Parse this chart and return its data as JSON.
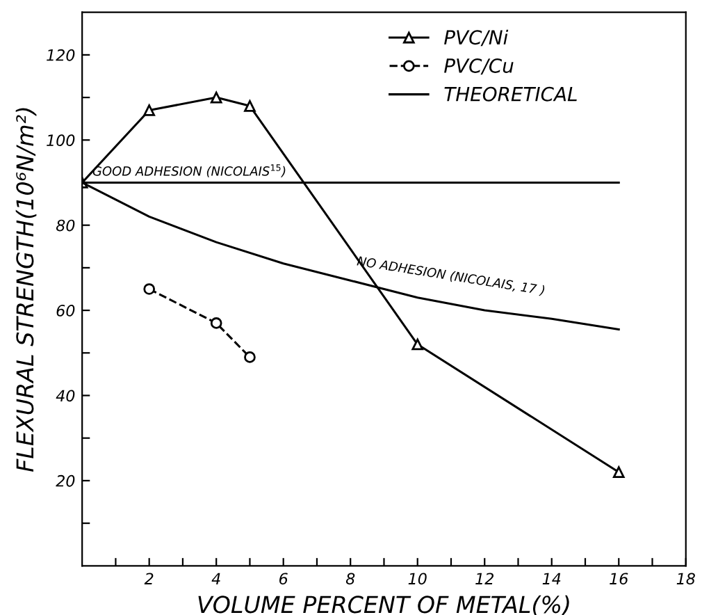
{
  "chart_data": {
    "type": "line",
    "xlabel": "VOLUME PERCENT OF METAL(%)",
    "ylabel": "FLEXURAL STRENGTH(10⁶N/m²)",
    "xlim": [
      0,
      18
    ],
    "ylim": [
      0,
      130
    ],
    "xticks": [
      {
        "value": 1,
        "label": null
      },
      2,
      {
        "value": 3,
        "label": null
      },
      4,
      {
        "value": 5,
        "label": null
      },
      6,
      {
        "value": 7,
        "label": null
      },
      8,
      {
        "value": 9,
        "label": null
      },
      10,
      {
        "value": 11,
        "label": null
      },
      12,
      {
        "value": 13,
        "label": null
      },
      14,
      {
        "value": 15,
        "label": null
      },
      16,
      {
        "value": 17,
        "label": null
      },
      18
    ],
    "yticks": [
      {
        "value": 10,
        "label": null
      },
      20,
      {
        "value": 30,
        "label": null
      },
      40,
      {
        "value": 50,
        "label": null
      },
      60,
      {
        "value": 70,
        "label": null
      },
      80,
      {
        "value": 90,
        "label": null
      },
      100,
      {
        "value": 110,
        "label": null
      },
      120
    ],
    "grid": false,
    "legend": "top right",
    "series": [
      {
        "name": "PVC/Ni",
        "color": "#000000",
        "x": [
          0,
          2,
          4,
          5,
          10,
          16
        ],
        "values": [
          90,
          107,
          110,
          108,
          52,
          22
        ],
        "marker": "triangle",
        "line_style": "solid"
      },
      {
        "name": "PVC/Cu",
        "color": "#000000",
        "x": [
          2,
          4,
          5
        ],
        "values": [
          65,
          57,
          49
        ],
        "marker": "circle",
        "line_style": "dashed"
      },
      {
        "name": "THEORETICAL",
        "color": "#000000",
        "x": [
          0,
          2,
          4,
          6,
          8,
          10,
          12,
          14,
          16
        ],
        "values": [
          90,
          82,
          76,
          71,
          67,
          63,
          60,
          58,
          55.5
        ],
        "marker": "none",
        "line_style": "solid"
      },
      {
        "color": "#000000",
        "x": [
          0,
          16
        ],
        "values": [
          90,
          90
        ],
        "marker": "none",
        "line_style": "solid"
      }
    ],
    "annotations": [
      {
        "text": "GOOD ADHESION (NICOLAIS$^{15}$)",
        "x": 3.2,
        "y": 90
      },
      {
        "text": "NO ADHESION (NICOLAIS, 17 )",
        "x": 11,
        "y": 62
      }
    ]
  }
}
